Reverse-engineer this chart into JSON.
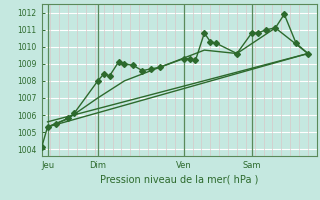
{
  "background_color": "#c5e8e0",
  "grid_color_major": "#aad4ca",
  "grid_color_minor": "#d8c8c8",
  "line_color": "#2d6a2d",
  "marker_color": "#2d6a2d",
  "title": "Pression niveau de la mer( hPa )",
  "ylabel_vals": [
    1004,
    1005,
    1006,
    1007,
    1008,
    1009,
    1010,
    1011,
    1012
  ],
  "ylim": [
    1003.6,
    1012.5
  ],
  "xlim": [
    0,
    93
  ],
  "day_labels": [
    "Jeu",
    "Dim",
    "Ven",
    "Sam"
  ],
  "day_positions": [
    2,
    19,
    48,
    71
  ],
  "series": [
    {
      "x": [
        0,
        2,
        5,
        9,
        11,
        19,
        21,
        23,
        26,
        28,
        31,
        34,
        37,
        40,
        48,
        50,
        52,
        55,
        57,
        59,
        66,
        71,
        73,
        76,
        79,
        82,
        86,
        90
      ],
      "y": [
        1004.1,
        1005.3,
        1005.5,
        1005.8,
        1006.1,
        1008.0,
        1008.4,
        1008.3,
        1009.1,
        1009.0,
        1008.9,
        1008.6,
        1008.7,
        1008.8,
        1009.3,
        1009.3,
        1009.2,
        1010.8,
        1010.3,
        1010.2,
        1009.6,
        1010.8,
        1010.8,
        1011.0,
        1011.1,
        1011.9,
        1010.2,
        1009.6
      ],
      "marker": "D",
      "markersize": 3.0,
      "linewidth": 1.0
    },
    {
      "x": [
        2,
        9,
        19,
        28,
        40,
        55,
        66,
        79,
        90
      ],
      "y": [
        1005.3,
        1005.8,
        1007.0,
        1008.0,
        1008.8,
        1009.8,
        1009.6,
        1011.1,
        1009.6
      ],
      "marker": null,
      "markersize": 0,
      "linewidth": 1.0
    },
    {
      "x": [
        2,
        90
      ],
      "y": [
        1005.6,
        1009.6
      ],
      "marker": null,
      "markersize": 0,
      "linewidth": 1.0
    },
    {
      "x": [
        2,
        90
      ],
      "y": [
        1005.3,
        1009.6
      ],
      "marker": null,
      "markersize": 0,
      "linewidth": 1.0
    }
  ]
}
